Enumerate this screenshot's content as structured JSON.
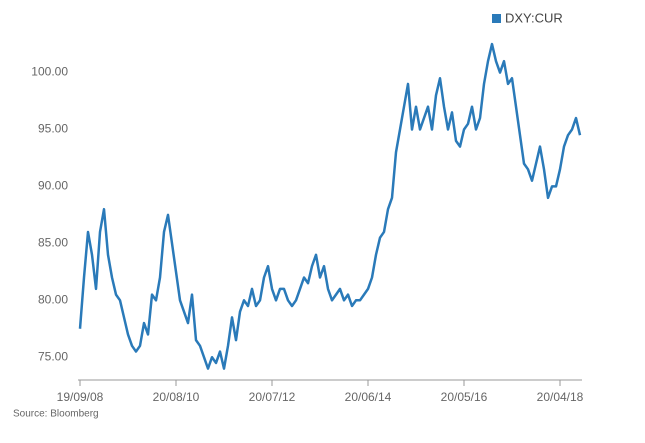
{
  "chart_data": {
    "type": "line",
    "source": "Source: Bloomberg",
    "categories": [
      "19/09/08",
      null,
      null,
      null,
      null,
      null,
      null,
      null,
      null,
      null,
      null,
      null,
      null,
      null,
      null,
      null,
      null,
      null,
      null,
      null,
      null,
      null,
      null,
      null,
      "20/08/10",
      null,
      null,
      null,
      null,
      null,
      null,
      null,
      null,
      null,
      null,
      null,
      null,
      null,
      null,
      null,
      null,
      null,
      null,
      null,
      null,
      null,
      null,
      null,
      "20/07/12",
      null,
      null,
      null,
      null,
      null,
      null,
      null,
      null,
      null,
      null,
      null,
      null,
      null,
      null,
      null,
      null,
      null,
      null,
      null,
      null,
      null,
      null,
      null,
      "20/06/14",
      null,
      null,
      null,
      null,
      null,
      null,
      null,
      null,
      null,
      null,
      null,
      null,
      null,
      null,
      null,
      null,
      null,
      null,
      null,
      null,
      null,
      null,
      null,
      "20/05/16",
      null,
      null,
      null,
      null,
      null,
      null,
      null,
      null,
      null,
      null,
      null,
      null,
      null,
      null,
      null,
      null,
      null,
      null,
      null,
      null,
      null,
      null,
      null,
      "20/04/18",
      null,
      null,
      null,
      null,
      null
    ],
    "series": [
      {
        "name": "DXY:CUR",
        "color": "#2a7ab9",
        "values": [
          77.5,
          82,
          86,
          84,
          81,
          86,
          88,
          84,
          82,
          80.5,
          80,
          78.5,
          77,
          76,
          75.5,
          76,
          78,
          77,
          80.5,
          80,
          82,
          86,
          87.5,
          85,
          82.5,
          80,
          79,
          78,
          80.5,
          76.5,
          76,
          75,
          74,
          75,
          74.5,
          75.5,
          74,
          76,
          78.5,
          76.5,
          79,
          80,
          79.5,
          81,
          79.5,
          80,
          82,
          83,
          81,
          80,
          81,
          81,
          80,
          79.5,
          80,
          81,
          82,
          81.5,
          83,
          84,
          82,
          83,
          81,
          80,
          80.5,
          81,
          80,
          80.5,
          79.5,
          80,
          80,
          80.5,
          81,
          82,
          84,
          85.5,
          86,
          88,
          89,
          93,
          95,
          97,
          99,
          95,
          97,
          95,
          96,
          97,
          95,
          98,
          99.5,
          97,
          95,
          96.5,
          94,
          93.5,
          95,
          95.5,
          97,
          95,
          96,
          99,
          101,
          102.5,
          101,
          100,
          101,
          99,
          99.5,
          97,
          94.5,
          92,
          91.5,
          90.5,
          92,
          93.5,
          91.5,
          89,
          90,
          90,
          91.5,
          93.5,
          94.5,
          95,
          96,
          94.5
        ]
      }
    ],
    "ylim": [
      73,
      104
    ],
    "yticks": [
      {
        "value": 75,
        "label": "75.00"
      },
      {
        "value": 80,
        "label": "80.00"
      },
      {
        "value": 85,
        "label": "85.00"
      },
      {
        "value": 90,
        "label": "90.00"
      },
      {
        "value": 95,
        "label": "95.00"
      },
      {
        "value": 100,
        "label": "100.00"
      }
    ],
    "grid": false,
    "legend": "top-right"
  }
}
